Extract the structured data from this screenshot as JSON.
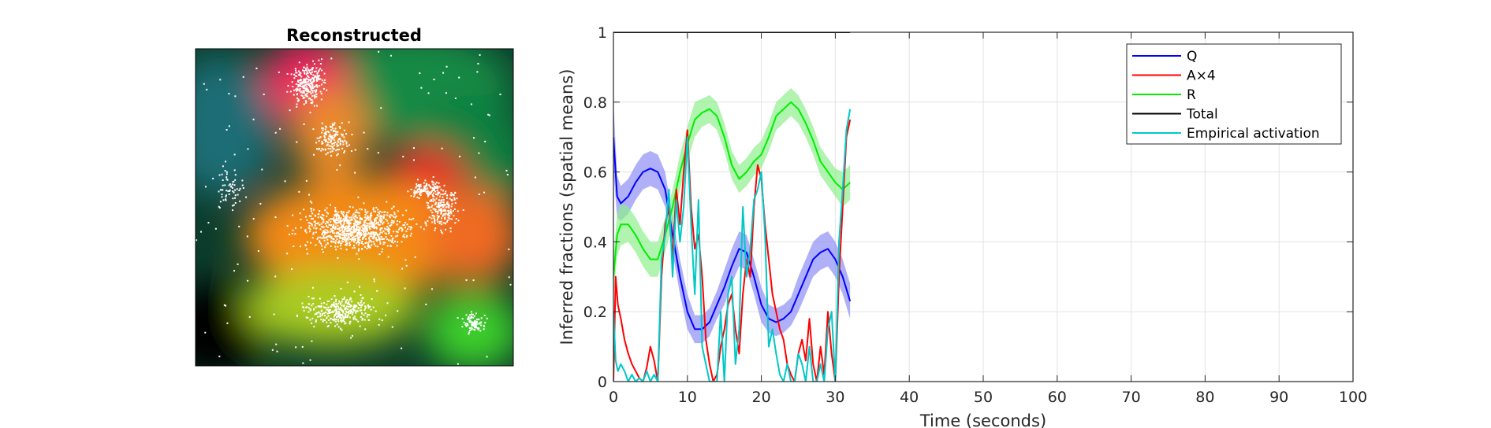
{
  "image_panel": {
    "title": "Reconstructed"
  },
  "chart_data": {
    "type": "line",
    "xlabel": "Time (seconds)",
    "ylabel": "Inferred fractions (spatial means)",
    "xlim": [
      0,
      100
    ],
    "ylim": [
      0,
      1
    ],
    "xticks": [
      0,
      10,
      20,
      30,
      40,
      50,
      60,
      70,
      80,
      90,
      100
    ],
    "yticks": [
      0,
      0.2,
      0.4,
      0.6,
      0.8,
      1
    ],
    "ytick_labels": [
      "0",
      "0.2",
      "0.4",
      "0.6",
      "0.8",
      "1"
    ],
    "grid": true,
    "legend_position": "top-right",
    "series": [
      {
        "name": "Q",
        "color": "#0000ff",
        "band_color": "#8f8ff5",
        "x": [
          0,
          0.5,
          1,
          2,
          3,
          4,
          5,
          6,
          7,
          8,
          9,
          10,
          11,
          12,
          13,
          14,
          15,
          16,
          17,
          18,
          19,
          20,
          21,
          22,
          23,
          24,
          25,
          26,
          27,
          28,
          29,
          30,
          31,
          32
        ],
        "y": [
          0.7,
          0.53,
          0.51,
          0.53,
          0.57,
          0.6,
          0.61,
          0.6,
          0.55,
          0.42,
          0.3,
          0.2,
          0.15,
          0.15,
          0.17,
          0.22,
          0.27,
          0.33,
          0.38,
          0.37,
          0.3,
          0.22,
          0.18,
          0.17,
          0.18,
          0.2,
          0.25,
          0.3,
          0.35,
          0.37,
          0.38,
          0.35,
          0.3,
          0.23
        ],
        "band_halfwidth": [
          0.1,
          0.06,
          0.05,
          0.05,
          0.05,
          0.05,
          0.05,
          0.05,
          0.05,
          0.05,
          0.05,
          0.05,
          0.04,
          0.04,
          0.04,
          0.04,
          0.05,
          0.05,
          0.05,
          0.05,
          0.05,
          0.05,
          0.04,
          0.04,
          0.04,
          0.04,
          0.05,
          0.05,
          0.05,
          0.05,
          0.05,
          0.05,
          0.05,
          0.05
        ]
      },
      {
        "name": "A×4",
        "color": "#ff0000",
        "x": [
          0,
          0.3,
          0.6,
          1,
          1.5,
          2,
          2.5,
          3,
          3.5,
          4,
          4.5,
          5,
          5.5,
          6,
          6.5,
          7,
          7.5,
          8,
          8.5,
          9,
          9.5,
          10,
          10.5,
          11,
          11.5,
          12,
          12.5,
          13,
          13.5,
          14,
          14.5,
          15,
          15.5,
          16,
          16.5,
          17,
          17.5,
          18,
          18.5,
          19,
          19.5,
          20,
          20.5,
          21,
          21.5,
          22,
          22.5,
          23,
          23.5,
          24,
          24.5,
          25,
          25.5,
          26,
          26.5,
          27,
          27.5,
          28,
          28.5,
          29,
          29.5,
          30,
          30.5,
          31,
          31.5,
          32
        ],
        "y": [
          0.0,
          0.3,
          0.22,
          0.18,
          0.12,
          0.08,
          0.05,
          0.03,
          0.01,
          0.0,
          0.04,
          0.1,
          0.06,
          0.0,
          0.3,
          0.45,
          0.5,
          0.35,
          0.55,
          0.45,
          0.6,
          0.72,
          0.5,
          0.38,
          0.42,
          0.3,
          0.12,
          0.05,
          0.0,
          0.02,
          0.1,
          0.15,
          0.22,
          0.25,
          0.15,
          0.08,
          0.25,
          0.35,
          0.3,
          0.5,
          0.62,
          0.58,
          0.45,
          0.35,
          0.25,
          0.2,
          0.15,
          0.12,
          0.05,
          0.02,
          0.0,
          0.08,
          0.12,
          0.06,
          0.18,
          0.05,
          0.0,
          0.1,
          0.02,
          0.2,
          0.08,
          0.0,
          0.3,
          0.5,
          0.7,
          0.75
        ]
      },
      {
        "name": "R",
        "color": "#00ee00",
        "band_color": "#8ef08e",
        "x": [
          0,
          0.5,
          1,
          2,
          3,
          4,
          5,
          6,
          7,
          8,
          9,
          10,
          11,
          12,
          13,
          14,
          15,
          16,
          17,
          18,
          19,
          20,
          21,
          22,
          23,
          24,
          25,
          26,
          27,
          28,
          29,
          30,
          31,
          32
        ],
        "y": [
          0.3,
          0.42,
          0.45,
          0.45,
          0.42,
          0.38,
          0.35,
          0.35,
          0.42,
          0.5,
          0.6,
          0.68,
          0.75,
          0.77,
          0.78,
          0.76,
          0.7,
          0.62,
          0.58,
          0.6,
          0.63,
          0.65,
          0.7,
          0.76,
          0.78,
          0.8,
          0.78,
          0.74,
          0.69,
          0.63,
          0.6,
          0.57,
          0.55,
          0.57
        ],
        "band_halfwidth": [
          0.06,
          0.06,
          0.06,
          0.05,
          0.05,
          0.05,
          0.05,
          0.05,
          0.05,
          0.05,
          0.05,
          0.05,
          0.05,
          0.04,
          0.04,
          0.04,
          0.04,
          0.04,
          0.04,
          0.04,
          0.04,
          0.04,
          0.04,
          0.04,
          0.04,
          0.04,
          0.04,
          0.04,
          0.04,
          0.04,
          0.04,
          0.04,
          0.05,
          0.05
        ]
      },
      {
        "name": "Total",
        "color": "#000000",
        "x": [
          0,
          32
        ],
        "y": [
          1,
          1
        ]
      },
      {
        "name": "Empirical activation",
        "color": "#00c8c8",
        "x": [
          0,
          0.3,
          0.6,
          1,
          1.5,
          2,
          2.5,
          3,
          3.5,
          4,
          4.5,
          5,
          5.5,
          6,
          6.5,
          7,
          7.5,
          8,
          8.5,
          9,
          9.5,
          10,
          10.5,
          11,
          11.5,
          12,
          12.5,
          13,
          13.5,
          14,
          14.5,
          15,
          15.5,
          16,
          16.5,
          17,
          17.5,
          18,
          18.5,
          19,
          19.5,
          20,
          20.5,
          21,
          21.5,
          22,
          22.5,
          23,
          23.5,
          24,
          24.5,
          25,
          25.5,
          26,
          26.5,
          27,
          27.5,
          28,
          28.5,
          29,
          29.5,
          30,
          30.5,
          31,
          31.5,
          32
        ],
        "y": [
          0.2,
          0.06,
          0.03,
          0.05,
          0.03,
          0.0,
          0.02,
          0.0,
          0.01,
          0.0,
          0.03,
          0.0,
          0.02,
          0.0,
          0.35,
          0.42,
          0.55,
          0.3,
          0.52,
          0.4,
          0.5,
          0.7,
          0.45,
          0.25,
          0.52,
          0.1,
          0.05,
          0.0,
          0.0,
          0.0,
          0.2,
          0.0,
          0.25,
          0.3,
          0.05,
          0.15,
          0.5,
          0.3,
          0.38,
          0.52,
          0.55,
          0.6,
          0.42,
          0.1,
          0.15,
          0.08,
          0.02,
          0.0,
          0.05,
          0.0,
          0.0,
          0.08,
          0.05,
          0.0,
          0.1,
          0.0,
          0.0,
          0.05,
          0.0,
          0.15,
          0.2,
          0.0,
          0.4,
          0.55,
          0.72,
          0.78
        ]
      }
    ]
  }
}
